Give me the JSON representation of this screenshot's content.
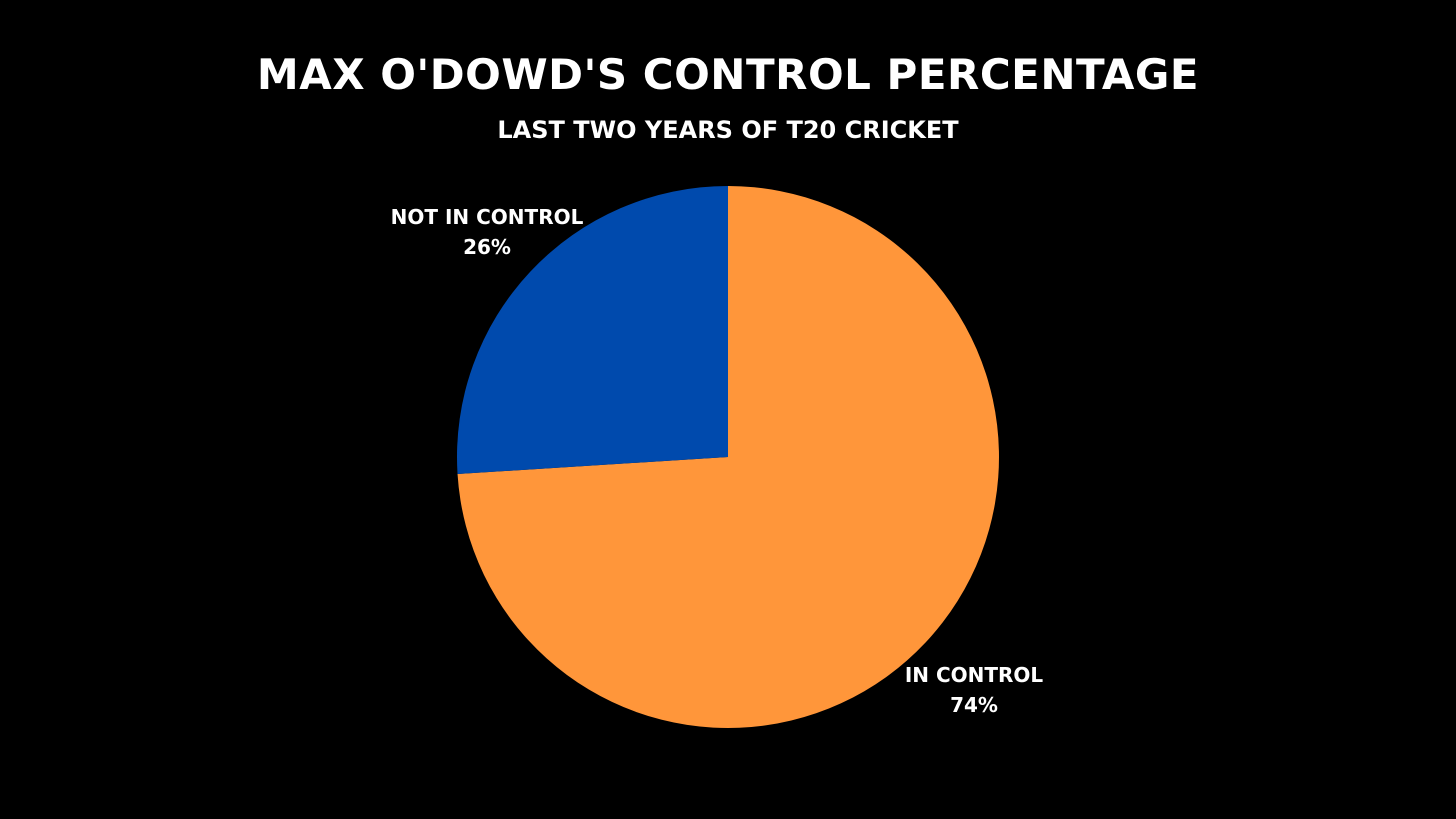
{
  "chart_data": {
    "type": "pie",
    "title": "MAX O'DOWD'S CONTROL PERCENTAGE",
    "subtitle": "LAST TWO YEARS OF T20 CRICKET",
    "slices": [
      {
        "label": "IN CONTROL",
        "value": 74,
        "value_label": "74%",
        "color": "#FF963A"
      },
      {
        "label": "NOT IN CONTROL",
        "value": 26,
        "value_label": "26%",
        "color": "#004AAD"
      }
    ],
    "legend": "none",
    "background": "#000000",
    "text_color": "#FFFFFF"
  }
}
